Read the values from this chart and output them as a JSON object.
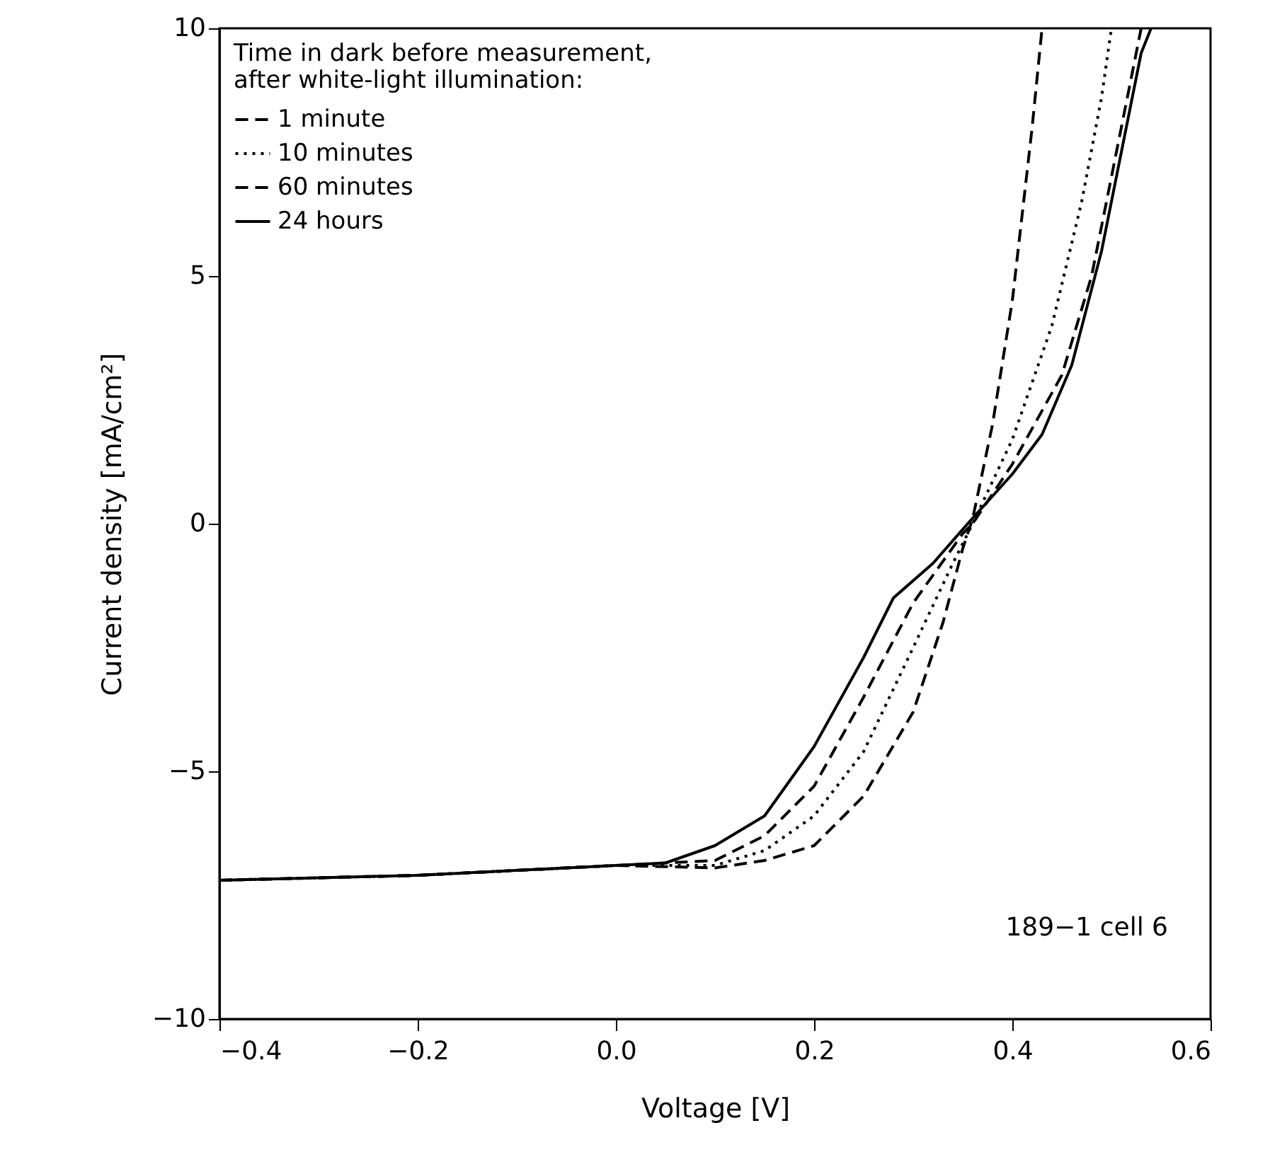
{
  "chart_data": {
    "type": "line",
    "xlabel": "Voltage [V]",
    "ylabel": "Current density [mA/cm²]",
    "legend_title": "Time in dark before measurement, after white-light illumination:",
    "xlim": [
      -0.4,
      0.6
    ],
    "xticks": [
      {
        "value": -0.4,
        "label": "−0.4"
      },
      {
        "value": -0.2,
        "label": "−0.2"
      },
      {
        "value": 0,
        "label": "0.0"
      },
      {
        "value": 0.2,
        "label": "0.2"
      },
      {
        "value": 0.4,
        "label": "0.4"
      },
      {
        "value": 0.6,
        "label": "0.6"
      }
    ],
    "ylim": [
      -10,
      10
    ],
    "yticks": [
      {
        "value": -10,
        "label": "−10"
      },
      {
        "value": -5,
        "label": "−5"
      },
      0,
      5,
      10
    ],
    "grid": false,
    "legend": "top left",
    "annotations": [
      "189−1 cell 6"
    ],
    "series": [
      {
        "name": "1 minute",
        "color": "#000000",
        "line_style": "dashed",
        "x": [
          -0.4,
          -0.2,
          0.0,
          0.1,
          0.15,
          0.2,
          0.25,
          0.3,
          0.33,
          0.35,
          0.36,
          0.38,
          0.4,
          0.42,
          0.43
        ],
        "values": [
          -7.2,
          -7.1,
          -6.9,
          -6.95,
          -6.8,
          -6.5,
          -5.5,
          -3.8,
          -2,
          -0.5,
          0.1,
          2,
          4.5,
          8,
          10
        ]
      },
      {
        "name": "10 minutes",
        "color": "#000000",
        "line_style": "dotted",
        "x": [
          -0.4,
          -0.2,
          0.0,
          0.1,
          0.15,
          0.2,
          0.25,
          0.3,
          0.34,
          0.36,
          0.4,
          0.44,
          0.47,
          0.49,
          0.5
        ],
        "values": [
          -7.2,
          -7.1,
          -6.9,
          -6.9,
          -6.6,
          -5.9,
          -4.6,
          -2.5,
          -0.8,
          0,
          1.7,
          4,
          6.5,
          8.6,
          10
        ]
      },
      {
        "name": "60 minutes",
        "color": "#000000",
        "line_style": "dashed",
        "x": [
          -0.4,
          -0.2,
          0.0,
          0.1,
          0.15,
          0.2,
          0.25,
          0.3,
          0.35,
          0.36,
          0.4,
          0.45,
          0.48,
          0.5,
          0.52,
          0.53
        ],
        "values": [
          -7.2,
          -7.1,
          -6.9,
          -6.8,
          -6.3,
          -5.3,
          -3.5,
          -1.6,
          -0.2,
          0,
          1.2,
          3.0,
          5.0,
          7.0,
          9.0,
          10
        ]
      },
      {
        "name": "24 hours",
        "color": "#000000",
        "line_style": "solid",
        "x": [
          -0.4,
          -0.2,
          0.0,
          0.05,
          0.1,
          0.15,
          0.2,
          0.25,
          0.28,
          0.32,
          0.355,
          0.4,
          0.43,
          0.46,
          0.49,
          0.51,
          0.53,
          0.54
        ],
        "values": [
          -7.2,
          -7.1,
          -6.9,
          -6.85,
          -6.5,
          -5.9,
          -4.5,
          -2.7,
          -1.5,
          -0.8,
          0,
          1.0,
          1.8,
          3.2,
          5.5,
          7.5,
          9.5,
          10
        ]
      }
    ]
  }
}
